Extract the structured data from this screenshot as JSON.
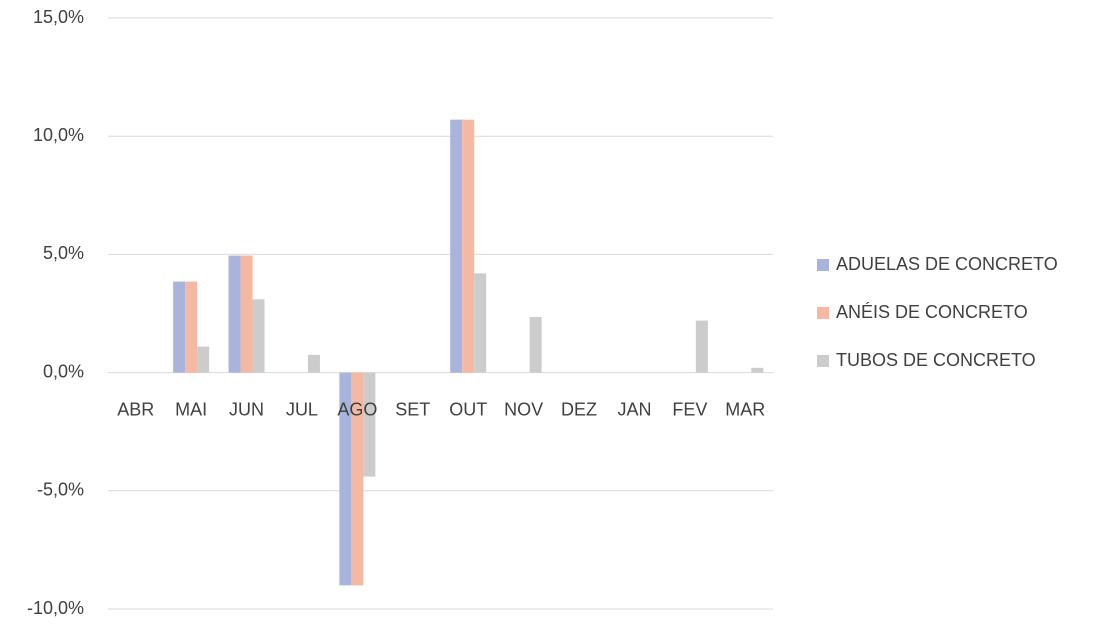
{
  "chart_data": {
    "type": "bar",
    "categories": [
      "ABR",
      "MAI",
      "JUN",
      "JUL",
      "AGO",
      "SET",
      "OUT",
      "NOV",
      "DEZ",
      "JAN",
      "FEV",
      "MAR"
    ],
    "series": [
      {
        "name": "ADUELAS DE CONCRETO",
        "color": "#a9b4dc",
        "values": [
          0,
          3.85,
          4.95,
          0,
          -9.0,
          0,
          10.7,
          0,
          0,
          0,
          0,
          0
        ]
      },
      {
        "name": "ANÉIS DE CONCRETO",
        "color": "#f5b8a2",
        "values": [
          0,
          3.85,
          4.95,
          0,
          -9.0,
          0,
          10.7,
          0,
          0,
          0,
          0,
          0
        ]
      },
      {
        "name": "TUBOS DE CONCRETO",
        "color": "#cccccc",
        "values": [
          0,
          1.1,
          3.1,
          0.75,
          -4.4,
          0,
          4.2,
          2.35,
          0,
          0,
          2.2,
          0.2
        ]
      }
    ],
    "ylim": [
      -10,
      15
    ],
    "yticks": [
      {
        "value": -10,
        "label": "-10,0%"
      },
      {
        "value": -5,
        "label": "-5,0%"
      },
      {
        "value": 0,
        "label": "0,0%"
      },
      {
        "value": 5,
        "label": "5,0%"
      },
      {
        "value": 10,
        "label": "10,0%"
      },
      {
        "value": 15,
        "label": "15,0%"
      }
    ],
    "grid": true,
    "legend": "right"
  }
}
